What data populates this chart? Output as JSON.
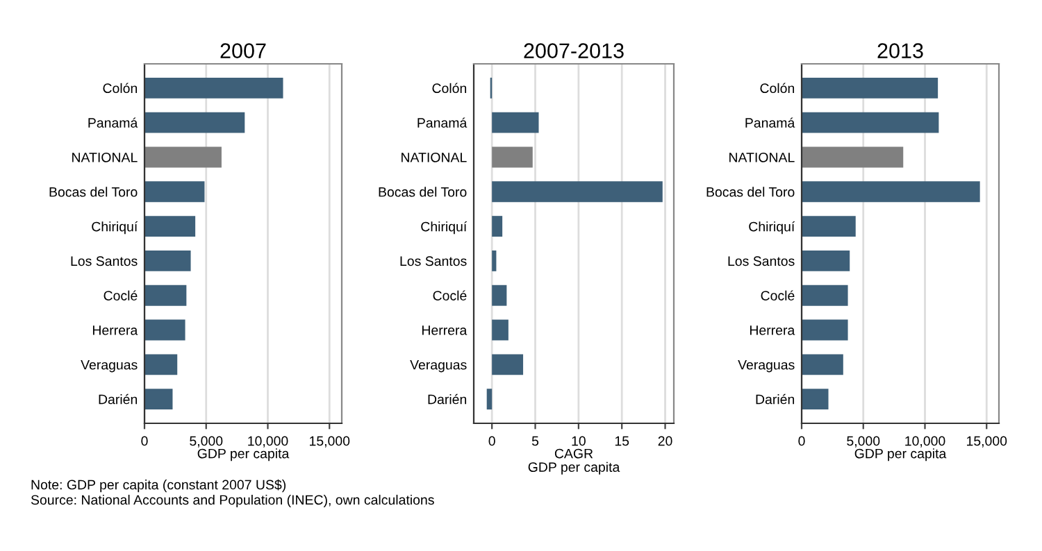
{
  "chart_data": [
    {
      "type": "bar",
      "orientation": "horizontal",
      "title": "2007",
      "xlabel": "GDP per capita",
      "categories": [
        "Colón",
        "Panamá",
        "NATIONAL",
        "Bocas del Toro",
        "Chiriquí",
        "Los Santos",
        "Coclé",
        "Herrera",
        "Veraguas",
        "Darién"
      ],
      "values": [
        11240,
        8130,
        6250,
        4870,
        4120,
        3750,
        3400,
        3300,
        2660,
        2280
      ],
      "colors": [
        "#3e6079",
        "#3e6079",
        "#808080",
        "#3e6079",
        "#3e6079",
        "#3e6079",
        "#3e6079",
        "#3e6079",
        "#3e6079",
        "#3e6079"
      ],
      "xlim": [
        0,
        16000
      ],
      "xticks": [
        0,
        {
          "value": 5000,
          "label": "5,000"
        },
        {
          "value": 10000,
          "label": "10,000"
        },
        {
          "value": 15000,
          "label": "15,000"
        }
      ],
      "grid": "x",
      "annotations": [
        "Note: GDP per capita (constant 2007 US$)",
        "Source: National Accounts and Population (INEC), own calculations"
      ]
    },
    {
      "type": "bar",
      "orientation": "horizontal",
      "title": "2007-2013",
      "xlabel": "CAGR\nGDP per capita",
      "categories": [
        "Colón",
        "Panamá",
        "NATIONAL",
        "Bocas del Toro",
        "Chiriquí",
        "Los Santos",
        "Coclé",
        "Herrera",
        "Veraguas",
        "Darién"
      ],
      "values": [
        -0.2,
        5.4,
        4.7,
        19.7,
        1.2,
        0.5,
        1.7,
        1.9,
        3.6,
        -0.6
      ],
      "colors": [
        "#3e6079",
        "#3e6079",
        "#808080",
        "#3e6079",
        "#3e6079",
        "#3e6079",
        "#3e6079",
        "#3e6079",
        "#3e6079",
        "#3e6079"
      ],
      "xlim": [
        -2.1,
        21
      ],
      "xticks": [
        0,
        5,
        10,
        15,
        20
      ],
      "grid": "x"
    },
    {
      "type": "bar",
      "orientation": "horizontal",
      "title": "2013",
      "xlabel": "GDP per capita",
      "categories": [
        "Colón",
        "Panamá",
        "NATIONAL",
        "Bocas del Toro",
        "Chiriquí",
        "Los Santos",
        "Coclé",
        "Herrera",
        "Veraguas",
        "Darién"
      ],
      "values": [
        11050,
        11120,
        8240,
        14460,
        4380,
        3900,
        3750,
        3750,
        3370,
        2170
      ],
      "colors": [
        "#3e6079",
        "#3e6079",
        "#808080",
        "#3e6079",
        "#3e6079",
        "#3e6079",
        "#3e6079",
        "#3e6079",
        "#3e6079",
        "#3e6079"
      ],
      "xlim": [
        0,
        16000
      ],
      "xticks": [
        0,
        {
          "value": 5000,
          "label": "5,000"
        },
        {
          "value": 10000,
          "label": "10,000"
        },
        {
          "value": 15000,
          "label": "15,000"
        }
      ],
      "grid": "x"
    }
  ]
}
